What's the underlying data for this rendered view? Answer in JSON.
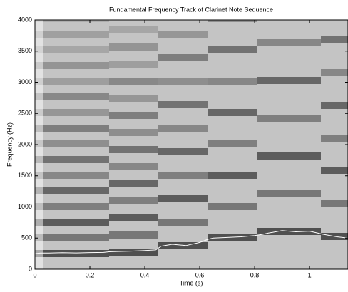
{
  "chart_data": {
    "type": "line",
    "title": "Fundamental Frequency Track of Clarinet Note Sequence",
    "x_label": "Time (s)",
    "y_label": "Frequency (Hz)",
    "x": [
      0.0,
      0.02,
      0.05,
      0.1,
      0.15,
      0.2,
      0.25,
      0.27,
      0.3,
      0.35,
      0.4,
      0.44,
      0.46,
      0.5,
      0.55,
      0.6,
      0.63,
      0.65,
      0.7,
      0.75,
      0.8,
      0.83,
      0.85,
      0.9,
      0.95,
      1.0,
      1.05,
      1.1,
      1.14
    ],
    "series": [
      {
        "color": "#ffffff",
        "values": [
          250,
          260,
          260,
          265,
          262,
          268,
          270,
          280,
          285,
          290,
          300,
          310,
          370,
          400,
          380,
          430,
          480,
          500,
          510,
          520,
          540,
          560,
          580,
          620,
          600,
          610,
          560,
          520,
          500
        ]
      }
    ],
    "xlim": [
      0,
      1.14
    ],
    "xticks": [
      0,
      0.2,
      0.4,
      0.6,
      0.8,
      1
    ],
    "ylim": [
      0,
      4000
    ],
    "yticks": [
      0,
      500,
      1000,
      1500,
      2000,
      2500,
      3000,
      3500,
      4000
    ]
  }
}
